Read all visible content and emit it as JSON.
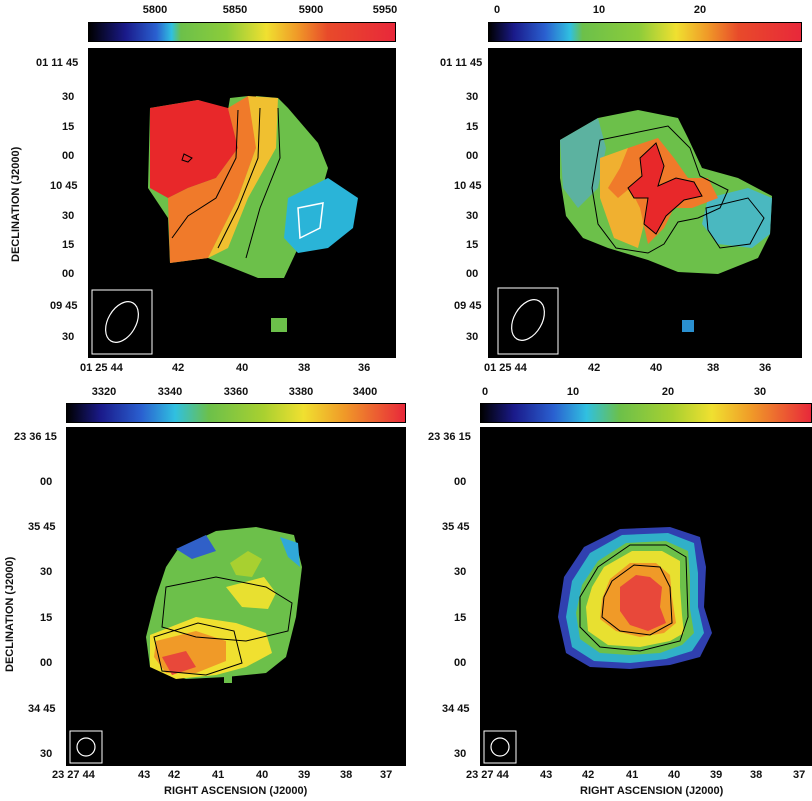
{
  "panels": {
    "tl": {
      "colorbar_ticks": [
        "5800",
        "5850",
        "5900",
        "5950"
      ],
      "y_ticks": [
        "01 11 45",
        "30",
        "15",
        "00",
        "10 45",
        "30",
        "15",
        "00",
        "09 45",
        "30"
      ],
      "x_ticks": [
        "01 25 44",
        "42",
        "40",
        "38",
        "36"
      ],
      "ylabel": "DECLINATION (J2000)"
    },
    "tr": {
      "colorbar_ticks": [
        "0",
        "10",
        "20"
      ],
      "y_ticks": [
        "01 11 45",
        "30",
        "15",
        "00",
        "10 45",
        "30",
        "15",
        "00",
        "09 45",
        "30"
      ],
      "x_ticks": [
        "01 25 44",
        "42",
        "40",
        "38",
        "36"
      ]
    },
    "bl": {
      "colorbar_ticks": [
        "3320",
        "3340",
        "3360",
        "3380",
        "3400"
      ],
      "y_ticks": [
        "23 36 15",
        "00",
        "35 45",
        "30",
        "15",
        "00",
        "34 45",
        "30"
      ],
      "x_ticks": [
        "23 27 44",
        "43",
        "42",
        "41",
        "40",
        "39",
        "38",
        "37"
      ],
      "ylabel": "DECLINATION (J2000)",
      "xlabel": "RIGHT ASCENSION (J2000)"
    },
    "br": {
      "colorbar_ticks": [
        "0",
        "10",
        "20",
        "30"
      ],
      "y_ticks": [
        "23 36 15",
        "00",
        "35 45",
        "30",
        "15",
        "00",
        "34 45",
        "30"
      ],
      "x_ticks": [
        "23 27 44",
        "43",
        "42",
        "41",
        "40",
        "39",
        "38",
        "37"
      ],
      "xlabel": "RIGHT ASCENSION (J2000)"
    }
  },
  "colors": {
    "background": "#000000",
    "red": "#e8282a",
    "orange": "#f08a22",
    "yellow": "#f2e22a",
    "green": "#6cc04a",
    "cyan": "#2ab4d8",
    "blue": "#2a40b0"
  }
}
